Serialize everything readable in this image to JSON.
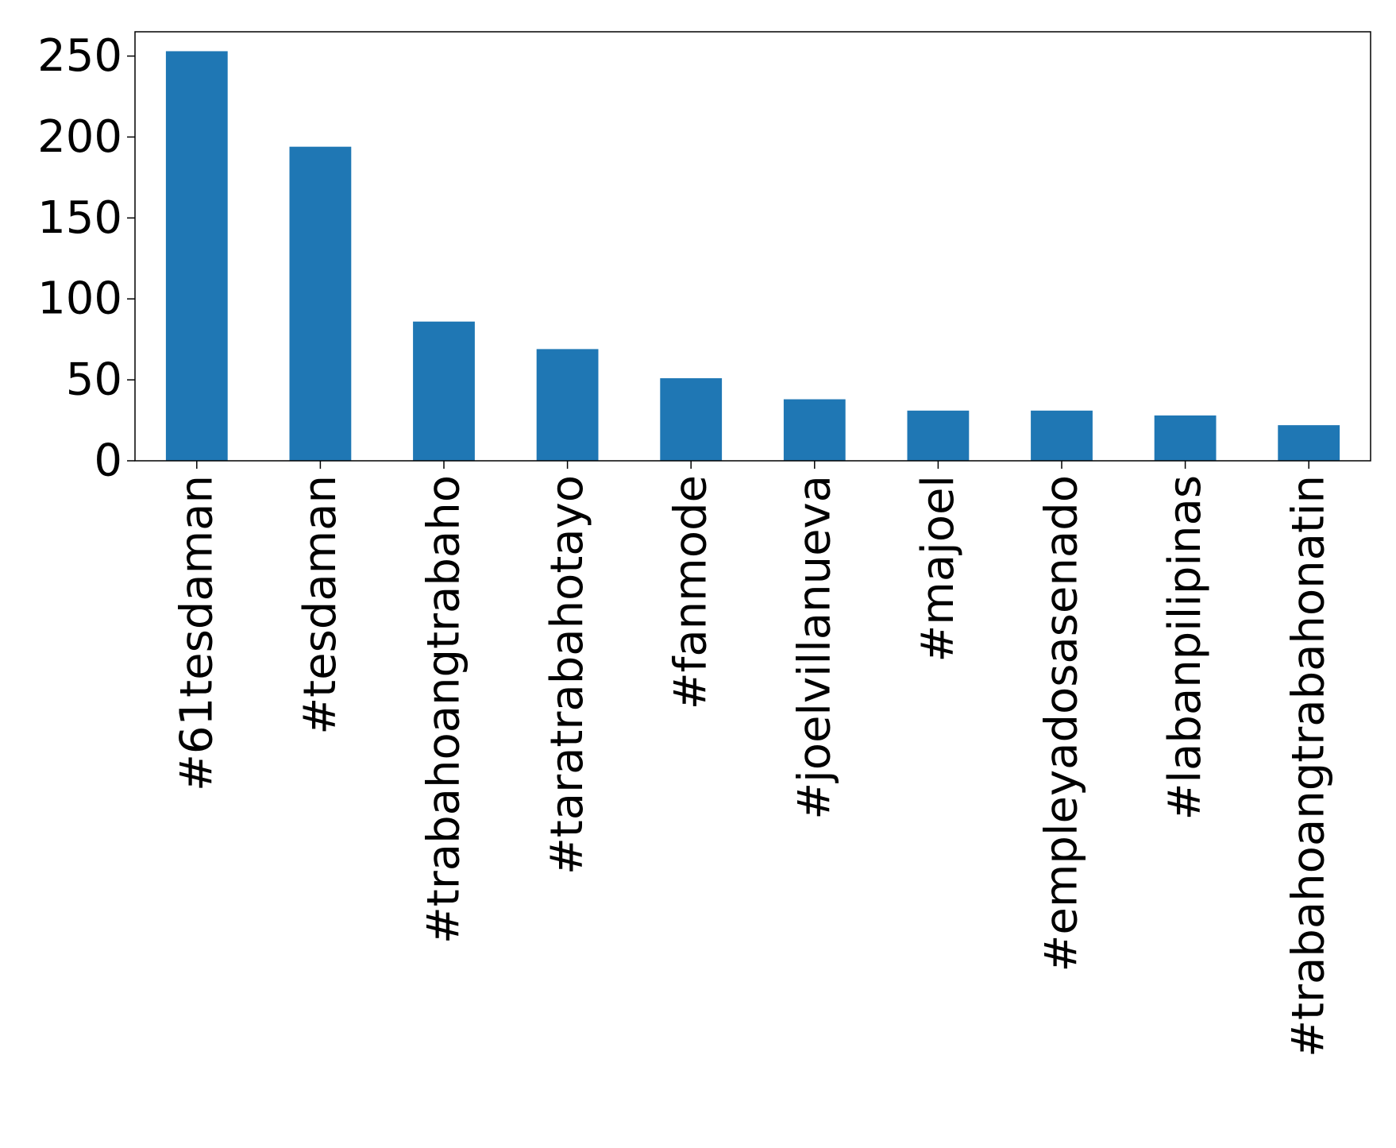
{
  "chart_data": {
    "type": "bar",
    "title": "",
    "xlabel": "",
    "ylabel": "",
    "categories": [
      "#61tesdaman",
      "#tesdaman",
      "#trabahoangtrabaho",
      "#taratrabahotayo",
      "#fanmode",
      "#joelvillanueva",
      "#majoel",
      "#empleyadosasenado",
      "#labanpilipinas",
      "#trabahoangtrabahonatin"
    ],
    "values": [
      253,
      194,
      86,
      69,
      51,
      38,
      31,
      31,
      28,
      22
    ],
    "ylim": [
      0,
      265
    ],
    "yticks": [
      "0",
      "50",
      "100",
      "150",
      "200",
      "250"
    ],
    "grid": false,
    "legend": "none",
    "bar_color": "#1f77b4"
  }
}
